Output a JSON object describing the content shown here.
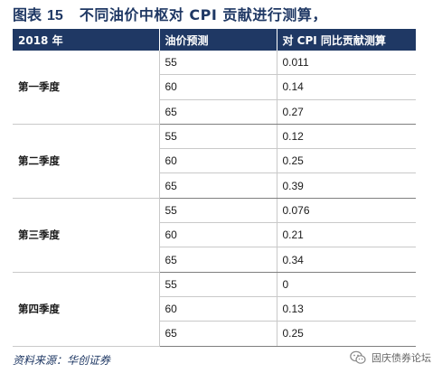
{
  "title": {
    "label": "图表",
    "number": "15",
    "text": "不同油价中枢对 CPI 贡献进行测算，"
  },
  "table": {
    "headers": [
      "2018 年",
      "油价预测",
      "对 CPI 同比贡献测算"
    ],
    "groups": [
      {
        "quarter": "第一季度",
        "rows": [
          {
            "oil": "55",
            "cpi": "0.011"
          },
          {
            "oil": "60",
            "cpi": "0.14"
          },
          {
            "oil": "65",
            "cpi": "0.27"
          }
        ]
      },
      {
        "quarter": "第二季度",
        "rows": [
          {
            "oil": "55",
            "cpi": "0.12"
          },
          {
            "oil": "60",
            "cpi": "0.25"
          },
          {
            "oil": "65",
            "cpi": "0.39"
          }
        ]
      },
      {
        "quarter": "第三季度",
        "rows": [
          {
            "oil": "55",
            "cpi": "0.076"
          },
          {
            "oil": "60",
            "cpi": "0.21"
          },
          {
            "oil": "65",
            "cpi": "0.34"
          }
        ]
      },
      {
        "quarter": "第四季度",
        "rows": [
          {
            "oil": "55",
            "cpi": "0"
          },
          {
            "oil": "60",
            "cpi": "0.13"
          },
          {
            "oil": "65",
            "cpi": "0.25"
          }
        ]
      }
    ]
  },
  "source": "资料来源：华创证券",
  "watermark": {
    "text": "固庆债券论坛",
    "icon": "wechat-icon"
  }
}
